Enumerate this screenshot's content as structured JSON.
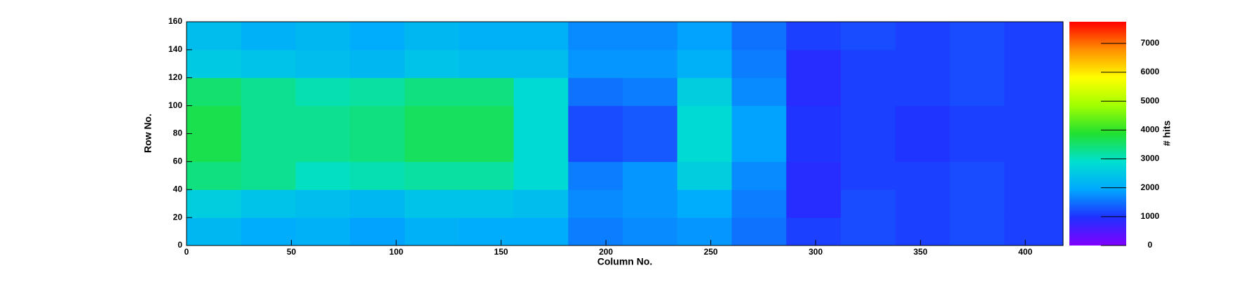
{
  "chart_data": {
    "type": "heatmap",
    "xlabel": "Column No.",
    "ylabel": "Row No.",
    "zlabel": "# hits",
    "xbins": [
      0,
      26,
      52,
      78,
      104,
      130,
      156,
      182,
      208,
      234,
      260,
      286,
      312,
      338,
      364,
      390,
      418
    ],
    "ybins": [
      0,
      20,
      40,
      60,
      80,
      100,
      120,
      140,
      160
    ],
    "z": [
      [
        2200,
        2000,
        2100,
        1900,
        2100,
        2000,
        2000,
        1600,
        1700,
        1800,
        1500,
        1100,
        1200,
        1100,
        1200,
        1100
      ],
      [
        2600,
        2400,
        2300,
        2200,
        2400,
        2400,
        2300,
        1700,
        1800,
        2000,
        1600,
        900,
        1200,
        1100,
        1200,
        1100
      ],
      [
        3400,
        3300,
        3000,
        3100,
        3200,
        3200,
        2800,
        1600,
        1800,
        2600,
        1700,
        900,
        1100,
        1100,
        1200,
        1100
      ],
      [
        3700,
        3300,
        3300,
        3400,
        3600,
        3600,
        2800,
        1200,
        1300,
        2800,
        1900,
        1000,
        1100,
        1000,
        1100,
        1100
      ],
      [
        3700,
        3300,
        3300,
        3400,
        3600,
        3600,
        2800,
        1200,
        1300,
        2800,
        1900,
        1000,
        1100,
        1000,
        1100,
        1100
      ],
      [
        3500,
        3300,
        3100,
        3200,
        3400,
        3400,
        2800,
        1500,
        1600,
        2600,
        1700,
        900,
        1100,
        1100,
        1200,
        1100
      ],
      [
        2500,
        2400,
        2300,
        2200,
        2400,
        2300,
        2300,
        1800,
        1800,
        2100,
        1600,
        900,
        1100,
        1100,
        1200,
        1100
      ],
      [
        2300,
        2100,
        2200,
        2000,
        2200,
        2100,
        2100,
        1700,
        1700,
        1900,
        1500,
        1100,
        1200,
        1100,
        1200,
        1100
      ]
    ],
    "xlim": [
      0,
      418
    ],
    "ylim": [
      0,
      160
    ],
    "zlim": [
      0,
      7750
    ],
    "xticks": [
      0,
      50,
      100,
      150,
      200,
      250,
      300,
      350,
      400
    ],
    "yticks": [
      0,
      20,
      40,
      60,
      80,
      100,
      120,
      140,
      160
    ],
    "zticks": [
      0,
      1000,
      2000,
      3000,
      4000,
      5000,
      6000,
      7000
    ],
    "colors": [
      "#8000ff",
      "#2030ff",
      "#00a8ff",
      "#00e0d0",
      "#20e030",
      "#a0ff00",
      "#ffff00",
      "#ff9000",
      "#ff0000"
    ]
  }
}
